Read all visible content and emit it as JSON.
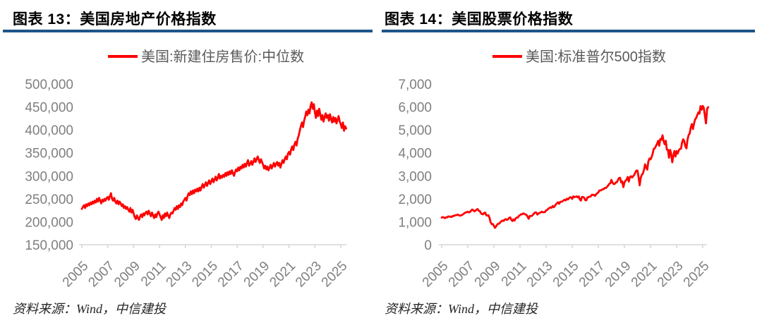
{
  "colors": {
    "line_red": "#FF0000",
    "rule_blue": "#1D5689",
    "axis_gray": "#D6D6D6",
    "tick_text": "#7F7F7F",
    "legend_text": "#595959",
    "title_text": "#000000",
    "source_text": "#262626"
  },
  "chart_data": [
    {
      "type": "line",
      "title": "图表  13：美国房地产价格指数",
      "legend": "美国:新建住房售价:中位数",
      "source": "资料来源：Wind，中信建投",
      "line_color": "#FF0000",
      "grid": false,
      "legend_position": "top-center",
      "x_unit": "monthly",
      "x_start": "2005-01",
      "x_end": "2025-06",
      "x_tick_labels": [
        "2005",
        "2007",
        "2009",
        "2011",
        "2013",
        "2015",
        "2017",
        "2019",
        "2021",
        "2023",
        "2025"
      ],
      "ylim": [
        150000,
        500000
      ],
      "y_ticks": [
        150000,
        200000,
        250000,
        300000,
        350000,
        400000,
        450000,
        500000
      ],
      "y_tick_labels": [
        "150,000",
        "200,000",
        "250,000",
        "300,000",
        "350,000",
        "400,000",
        "450,000",
        "500,000"
      ],
      "values": [
        228000,
        232000,
        236000,
        230000,
        238000,
        234000,
        240000,
        236000,
        242000,
        238000,
        244000,
        240000,
        246000,
        242000,
        250000,
        244000,
        252000,
        246000,
        240000,
        248000,
        244000,
        250000,
        246000,
        252000,
        254000,
        248000,
        256000,
        262000,
        250000,
        246000,
        252000,
        244000,
        240000,
        246000,
        238000,
        244000,
        240000,
        234000,
        238000,
        230000,
        234000,
        228000,
        232000,
        226000,
        222000,
        230000,
        220000,
        226000,
        218000,
        210000,
        206000,
        214000,
        208000,
        204000,
        212000,
        216000,
        210000,
        218000,
        214000,
        220000,
        222000,
        216000,
        224000,
        218000,
        212000,
        220000,
        214000,
        208000,
        216000,
        210000,
        218000,
        222000,
        216000,
        210000,
        204000,
        214000,
        208000,
        218000,
        212000,
        220000,
        214000,
        208000,
        216000,
        220000,
        218000,
        224000,
        230000,
        226000,
        234000,
        228000,
        236000,
        232000,
        240000,
        236000,
        244000,
        248000,
        252000,
        246000,
        256000,
        262000,
        258000,
        266000,
        260000,
        268000,
        262000,
        270000,
        266000,
        272000,
        266000,
        274000,
        268000,
        276000,
        282000,
        274000,
        280000,
        286000,
        278000,
        284000,
        290000,
        282000,
        288000,
        294000,
        286000,
        292000,
        298000,
        290000,
        296000,
        304000,
        294000,
        300000,
        296000,
        302000,
        298000,
        306000,
        300000,
        308000,
        302000,
        310000,
        304000,
        312000,
        306000,
        300000,
        308000,
        314000,
        310000,
        318000,
        312000,
        320000,
        316000,
        324000,
        318000,
        326000,
        320000,
        328000,
        334000,
        322000,
        326000,
        332000,
        324000,
        330000,
        338000,
        330000,
        336000,
        342000,
        334000,
        328000,
        336000,
        330000,
        324000,
        316000,
        322000,
        314000,
        320000,
        312000,
        318000,
        324000,
        316000,
        322000,
        328000,
        320000,
        326000,
        330000,
        322000,
        328000,
        318000,
        326000,
        334000,
        328000,
        336000,
        342000,
        336000,
        348000,
        352000,
        346000,
        358000,
        364000,
        356000,
        368000,
        374000,
        366000,
        380000,
        388000,
        398000,
        408000,
        416000,
        406000,
        420000,
        428000,
        440000,
        432000,
        444000,
        436000,
        452000,
        460000,
        446000,
        456000,
        438000,
        426000,
        442000,
        430000,
        446000,
        434000,
        422000,
        432000,
        418000,
        428000,
        436000,
        426000,
        432000,
        420000,
        434000,
        424000,
        416000,
        428000,
        418000,
        426000,
        414000,
        422000,
        430000,
        418000,
        412000,
        404000,
        416000,
        398000,
        408000,
        403000
      ]
    },
    {
      "type": "line",
      "title": "图表  14：美国股票价格指数",
      "legend": "美国:标准普尔500指数",
      "source": "资料来源：Wind，中信建投",
      "line_color": "#FF0000",
      "grid": false,
      "legend_position": "top-center",
      "x_unit": "monthly",
      "x_start": "2005-01",
      "x_end": "2025-06",
      "x_tick_labels": [
        "2005",
        "2007",
        "2009",
        "2011",
        "2013",
        "2015",
        "2017",
        "2019",
        "2021",
        "2023",
        "2025"
      ],
      "ylim": [
        0,
        7000
      ],
      "y_ticks": [
        0,
        1000,
        2000,
        3000,
        4000,
        5000,
        6000,
        7000
      ],
      "y_tick_labels": [
        "0",
        "1,000",
        "2,000",
        "3,000",
        "4,000",
        "5,000",
        "6,000",
        "7,000"
      ],
      "values": [
        1181,
        1204,
        1181,
        1157,
        1192,
        1191,
        1234,
        1220,
        1229,
        1207,
        1249,
        1248,
        1280,
        1281,
        1295,
        1311,
        1270,
        1270,
        1277,
        1304,
        1336,
        1378,
        1401,
        1418,
        1438,
        1407,
        1421,
        1482,
        1531,
        1503,
        1455,
        1474,
        1527,
        1549,
        1481,
        1468,
        1379,
        1331,
        1323,
        1386,
        1400,
        1280,
        1267,
        1283,
        1166,
        969,
        896,
        903,
        826,
        735,
        798,
        873,
        919,
        919,
        987,
        1021,
        1057,
        1036,
        1096,
        1115,
        1074,
        1104,
        1169,
        1187,
        1089,
        1031,
        1102,
        1049,
        1141,
        1183,
        1181,
        1258,
        1286,
        1327,
        1326,
        1364,
        1345,
        1321,
        1292,
        1219,
        1131,
        1253,
        1247,
        1258,
        1312,
        1366,
        1408,
        1398,
        1310,
        1362,
        1379,
        1407,
        1441,
        1412,
        1416,
        1426,
        1498,
        1515,
        1569,
        1598,
        1631,
        1606,
        1686,
        1633,
        1682,
        1757,
        1806,
        1848,
        1783,
        1859,
        1872,
        1884,
        1924,
        1960,
        1931,
        2003,
        1972,
        2018,
        2068,
        2059,
        1995,
        2105,
        2068,
        2086,
        2107,
        2063,
        2104,
        1972,
        1920,
        2079,
        2080,
        2044,
        1940,
        1932,
        2060,
        2065,
        2097,
        2099,
        2174,
        2171,
        2168,
        2126,
        2199,
        2239,
        2279,
        2364,
        2363,
        2384,
        2412,
        2423,
        2470,
        2472,
        2519,
        2575,
        2648,
        2674,
        2824,
        2714,
        2641,
        2648,
        2705,
        2718,
        2816,
        2902,
        2914,
        2712,
        2760,
        2507,
        2704,
        2784,
        2834,
        2946,
        2752,
        2942,
        2980,
        2926,
        2977,
        3038,
        3141,
        3231,
        3226,
        2954,
        2585,
        2912,
        3044,
        3100,
        3271,
        3500,
        3363,
        3270,
        3622,
        3756,
        3714,
        3811,
        3973,
        4181,
        4204,
        4298,
        4395,
        4523,
        4308,
        4605,
        4567,
        4766,
        4516,
        4374,
        4530,
        4132,
        4132,
        3785,
        4130,
        3955,
        3586,
        3872,
        4080,
        3840,
        4077,
        3970,
        4109,
        4169,
        4180,
        4450,
        4589,
        4508,
        4288,
        4194,
        4568,
        4770,
        4846,
        5096,
        5254,
        5036,
        5278,
        5460,
        5522,
        5648,
        5762,
        5705,
        6032,
        5882,
        6041,
        5955,
        5612,
        5280,
        5912,
        5990
      ]
    }
  ]
}
